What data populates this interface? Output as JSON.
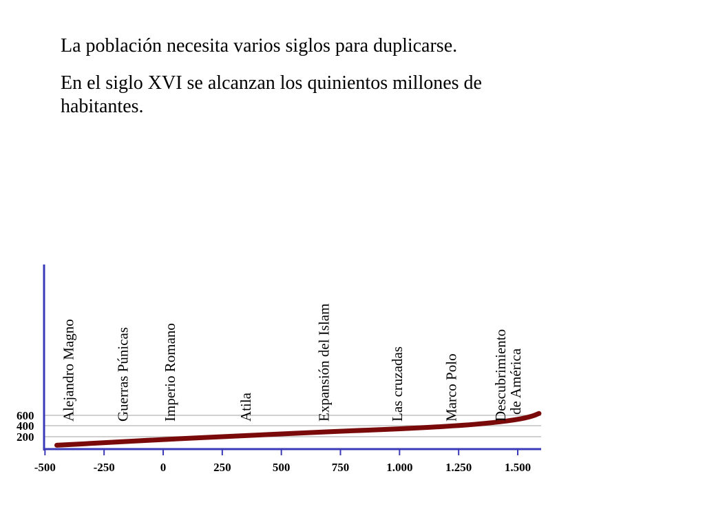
{
  "slide": {
    "title": "La población necesita varios siglos para duplicarse.",
    "subtitle": "En el siglo XVI se alcanzan los quinientos millones de habitantes."
  },
  "chart_data": {
    "type": "line",
    "title": "",
    "xlabel": "",
    "ylabel": "",
    "xlim": [
      -500,
      1600
    ],
    "x_ticks": [
      -500,
      -250,
      0,
      250,
      500,
      750,
      1000,
      1250,
      1500
    ],
    "x_tick_labels": [
      "-500",
      "-250",
      "0",
      "250",
      "500",
      "750",
      "1.000",
      "1.250",
      "1.500"
    ],
    "y_ticks": [
      200,
      400,
      600
    ],
    "y_tick_labels": [
      "200",
      "400",
      "600"
    ],
    "grid": "horizontal",
    "series": [
      {
        "name": "",
        "color": "#7a0a0a",
        "x": [
          -450,
          -250,
          0,
          250,
          500,
          750,
          1000,
          1250,
          1400,
          1500,
          1560,
          1590
        ],
        "y": [
          45,
          90,
          150,
          200,
          250,
          300,
          340,
          400,
          460,
          520,
          580,
          640
        ]
      }
    ],
    "annotations": [
      {
        "x": -380,
        "lines": [
          "Alejandro Magno"
        ]
      },
      {
        "x": -150,
        "lines": [
          "Guerras Púnicas"
        ]
      },
      {
        "x": 50,
        "lines": [
          "Imperio Romano"
        ]
      },
      {
        "x": 370,
        "lines": [
          "Atila"
        ]
      },
      {
        "x": 700,
        "lines": [
          "Expansión del Islam"
        ]
      },
      {
        "x": 1010,
        "lines": [
          "Las cruzadas"
        ]
      },
      {
        "x": 1240,
        "lines": [
          "Marco Polo"
        ]
      },
      {
        "x": 1480,
        "lines": [
          "Descubrimiento",
          "de América"
        ]
      }
    ]
  },
  "colors": {
    "axis": "#3a3ab8",
    "grid": "#b5b5b5",
    "line": "#7a0a0a"
  }
}
